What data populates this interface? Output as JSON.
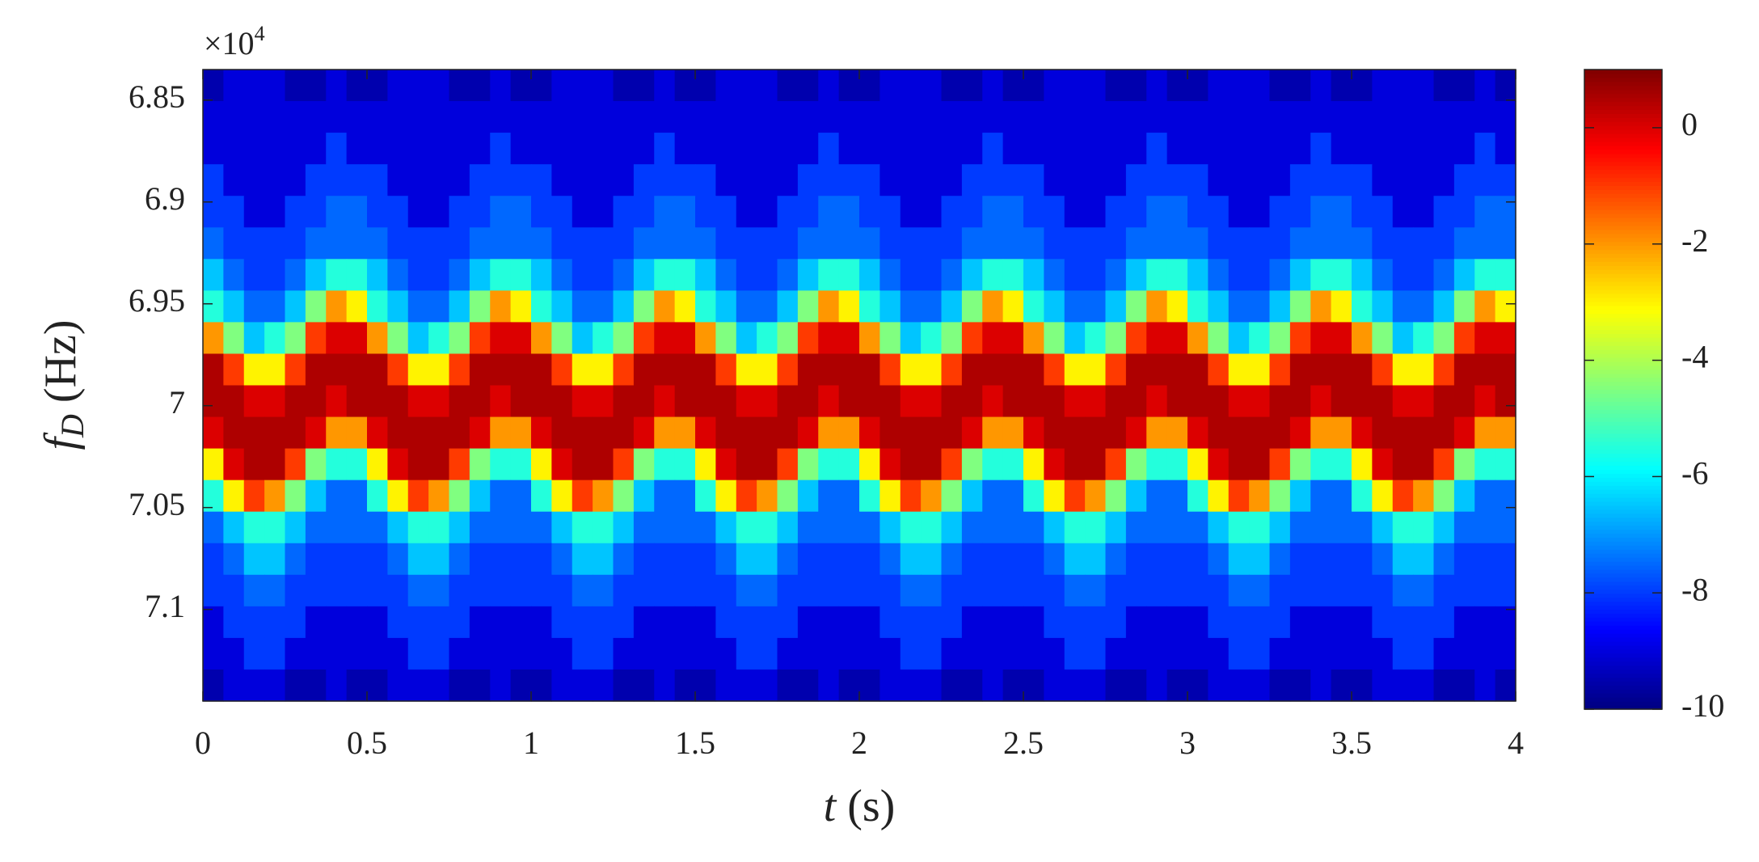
{
  "chart_data": {
    "type": "heatmap",
    "colormap": "jet",
    "xlabel": {
      "symbol": "t",
      "unit": "(s)"
    },
    "ylabel": {
      "symbol": "f",
      "subscript": "D",
      "unit": "(Hz)"
    },
    "y_multiplier": {
      "base": "×10",
      "exponent": "4"
    },
    "xlim": [
      0,
      4
    ],
    "xticks": [
      0,
      0.5,
      1,
      1.5,
      2,
      2.5,
      3,
      3.5,
      4
    ],
    "ylim": [
      6.835,
      7.145
    ],
    "y_reversed": true,
    "yticks": [
      6.85,
      6.9,
      6.95,
      7,
      7.05,
      7.1
    ],
    "clim": [
      -10,
      1
    ],
    "cticks": [
      0,
      -2,
      -4,
      -6,
      -8,
      -10
    ],
    "z": [
      [
        -9.5,
        -9,
        -9,
        -9,
        -9.5,
        -9.5,
        -9,
        -9.5,
        -9.5,
        -9,
        -9,
        -9,
        -9.5,
        -9.5,
        -9,
        -9.5,
        -9.5,
        -9,
        -9,
        -9,
        -9.5,
        -9.5,
        -9,
        -9.5,
        -9.5,
        -9,
        -9,
        -9,
        -9.5,
        -9.5,
        -9,
        -9.5,
        -9.5,
        -9,
        -9,
        -9,
        -9.5,
        -9.5,
        -9,
        -9.5,
        -9.5,
        -9,
        -9,
        -9,
        -9.5,
        -9.5,
        -9,
        -9.5,
        -9.5,
        -9,
        -9,
        -9,
        -9.5,
        -9.5,
        -9,
        -9.5,
        -9.5,
        -9,
        -9,
        -9,
        -9.5,
        -9.5,
        -9,
        -9.5
      ],
      [
        -9,
        -9,
        -9,
        -9,
        -9,
        -9,
        -9,
        -9,
        -9,
        -9,
        -9,
        -9,
        -9,
        -9,
        -9,
        -9,
        -9,
        -9,
        -9,
        -9,
        -9,
        -9,
        -9,
        -9,
        -9,
        -9,
        -9,
        -9,
        -9,
        -9,
        -9,
        -9,
        -9,
        -9,
        -9,
        -9,
        -9,
        -9,
        -9,
        -9,
        -9,
        -9,
        -9,
        -9,
        -9,
        -9,
        -9,
        -9,
        -9,
        -9,
        -9,
        -9,
        -9,
        -9,
        -9,
        -9,
        -9,
        -9,
        -9,
        -9,
        -9,
        -9,
        -9,
        -9
      ],
      [
        -9,
        -9,
        -9,
        -9,
        -9,
        -9,
        -8,
        -9,
        -9,
        -9,
        -9,
        -9,
        -9,
        -9,
        -8,
        -9,
        -9,
        -9,
        -9,
        -9,
        -9,
        -9,
        -8,
        -9,
        -9,
        -9,
        -9,
        -9,
        -9,
        -9,
        -8,
        -9,
        -9,
        -9,
        -9,
        -9,
        -9,
        -9,
        -8,
        -9,
        -9,
        -9,
        -9,
        -9,
        -9,
        -9,
        -8,
        -9,
        -9,
        -9,
        -9,
        -9,
        -9,
        -9,
        -8,
        -9,
        -9,
        -9,
        -9,
        -9,
        -9,
        -9,
        -8,
        -9
      ],
      [
        -8,
        -9,
        -9,
        -9,
        -9,
        -8,
        -8,
        -8,
        -8,
        -9,
        -9,
        -9,
        -9,
        -8,
        -8,
        -8,
        -8,
        -9,
        -9,
        -9,
        -9,
        -8,
        -8,
        -8,
        -8,
        -9,
        -9,
        -9,
        -9,
        -8,
        -8,
        -8,
        -8,
        -9,
        -9,
        -9,
        -9,
        -8,
        -8,
        -8,
        -8,
        -9,
        -9,
        -9,
        -9,
        -8,
        -8,
        -8,
        -8,
        -9,
        -9,
        -9,
        -9,
        -8,
        -8,
        -8,
        -8,
        -9,
        -9,
        -9,
        -9,
        -8,
        -8,
        -8
      ],
      [
        -8,
        -8,
        -9,
        -9,
        -8,
        -8,
        -7.5,
        -7.5,
        -8,
        -8,
        -9,
        -9,
        -8,
        -8,
        -7.5,
        -7.5,
        -8,
        -8,
        -9,
        -9,
        -8,
        -8,
        -7.5,
        -7.5,
        -8,
        -8,
        -9,
        -9,
        -8,
        -8,
        -7.5,
        -7.5,
        -8,
        -8,
        -9,
        -9,
        -8,
        -8,
        -7.5,
        -7.5,
        -8,
        -8,
        -9,
        -9,
        -8,
        -8,
        -7.5,
        -7.5,
        -8,
        -8,
        -9,
        -9,
        -8,
        -8,
        -7.5,
        -7.5,
        -8,
        -8,
        -9,
        -9,
        -8,
        -8,
        -7.5,
        -7.5
      ],
      [
        -7.5,
        -8,
        -8,
        -8,
        -8,
        -7.5,
        -7.5,
        -7.5,
        -7.5,
        -8,
        -8,
        -8,
        -8,
        -7.5,
        -7.5,
        -7.5,
        -7.5,
        -8,
        -8,
        -8,
        -8,
        -7.5,
        -7.5,
        -7.5,
        -7.5,
        -8,
        -8,
        -8,
        -8,
        -7.5,
        -7.5,
        -7.5,
        -7.5,
        -8,
        -8,
        -8,
        -8,
        -7.5,
        -7.5,
        -7.5,
        -7.5,
        -8,
        -8,
        -8,
        -8,
        -7.5,
        -7.5,
        -7.5,
        -7.5,
        -8,
        -8,
        -8,
        -8,
        -7.5,
        -7.5,
        -7.5,
        -7.5,
        -8,
        -8,
        -8,
        -8,
        -7.5,
        -7.5,
        -7.5
      ],
      [
        -6.5,
        -7.5,
        -8,
        -8,
        -7.5,
        -6.5,
        -5.5,
        -5.5,
        -6.5,
        -7.5,
        -8,
        -8,
        -7.5,
        -6.5,
        -5.5,
        -5.5,
        -6.5,
        -7.5,
        -8,
        -8,
        -7.5,
        -6.5,
        -5.5,
        -5.5,
        -6.5,
        -7.5,
        -8,
        -8,
        -7.5,
        -6.5,
        -5.5,
        -5.5,
        -6.5,
        -7.5,
        -8,
        -8,
        -7.5,
        -6.5,
        -5.5,
        -5.5,
        -6.5,
        -7.5,
        -8,
        -8,
        -7.5,
        -6.5,
        -5.5,
        -5.5,
        -6.5,
        -7.5,
        -8,
        -8,
        -7.5,
        -6.5,
        -5.5,
        -5.5,
        -6.5,
        -7.5,
        -8,
        -8,
        -7.5,
        -6.5,
        -5.5,
        -5.5
      ],
      [
        -5.5,
        -6.5,
        -7.5,
        -7.5,
        -6.5,
        -4.5,
        -2,
        -3,
        -5.5,
        -6.5,
        -7.5,
        -7.5,
        -6.5,
        -4.5,
        -2,
        -3,
        -5.5,
        -6.5,
        -7.5,
        -7.5,
        -6.5,
        -4.5,
        -2,
        -3,
        -5.5,
        -6.5,
        -7.5,
        -7.5,
        -6.5,
        -4.5,
        -2,
        -3,
        -5.5,
        -6.5,
        -7.5,
        -7.5,
        -6.5,
        -4.5,
        -2,
        -3,
        -5.5,
        -6.5,
        -7.5,
        -7.5,
        -6.5,
        -4.5,
        -2,
        -3,
        -5.5,
        -6.5,
        -7.5,
        -7.5,
        -6.5,
        -4.5,
        -2,
        -3,
        -5.5,
        -6.5,
        -7.5,
        -7.5,
        -6.5,
        -4.5,
        -2,
        -3
      ],
      [
        -2,
        -4.5,
        -6.5,
        -5.5,
        -4.5,
        -1,
        0,
        0,
        -2,
        -4.5,
        -6.5,
        -5.5,
        -4.5,
        -1,
        0,
        0,
        -2,
        -4.5,
        -6.5,
        -5.5,
        -4.5,
        -1,
        0,
        0,
        -2,
        -4.5,
        -6.5,
        -5.5,
        -4.5,
        -1,
        0,
        0,
        -2,
        -4.5,
        -6.5,
        -5.5,
        -4.5,
        -1,
        0,
        0,
        -2,
        -4.5,
        -6.5,
        -5.5,
        -4.5,
        -1,
        0,
        0,
        -2,
        -4.5,
        -6.5,
        -5.5,
        -4.5,
        -1,
        0,
        0,
        -2,
        -4.5,
        -6.5,
        -5.5,
        -4.5,
        -1,
        0,
        0
      ],
      [
        0.5,
        -1,
        -3,
        -3,
        -1,
        0.5,
        0.5,
        0.5,
        0.5,
        -1,
        -3,
        -3,
        -1,
        0.5,
        0.5,
        0.5,
        0.5,
        -1,
        -3,
        -3,
        -1,
        0.5,
        0.5,
        0.5,
        0.5,
        -1,
        -3,
        -3,
        -1,
        0.5,
        0.5,
        0.5,
        0.5,
        -1,
        -3,
        -3,
        -1,
        0.5,
        0.5,
        0.5,
        0.5,
        -1,
        -3,
        -3,
        -1,
        0.5,
        0.5,
        0.5,
        0.5,
        -1,
        -3,
        -3,
        -1,
        0.5,
        0.5,
        0.5,
        0.5,
        -1,
        -3,
        -3,
        -1,
        0.5,
        0.5,
        0.5
      ],
      [
        0.5,
        0.5,
        0,
        0,
        0.5,
        0.5,
        0,
        0.5,
        0.5,
        0.5,
        0,
        0,
        0.5,
        0.5,
        0,
        0.5,
        0.5,
        0.5,
        0,
        0,
        0.5,
        0.5,
        0,
        0.5,
        0.5,
        0.5,
        0,
        0,
        0.5,
        0.5,
        0,
        0.5,
        0.5,
        0.5,
        0,
        0,
        0.5,
        0.5,
        0,
        0.5,
        0.5,
        0.5,
        0,
        0,
        0.5,
        0.5,
        0,
        0.5,
        0.5,
        0.5,
        0,
        0,
        0.5,
        0.5,
        0,
        0.5,
        0.5,
        0.5,
        0,
        0,
        0.5,
        0.5,
        0,
        0.5
      ],
      [
        0,
        0.5,
        0.5,
        0.5,
        0.5,
        0,
        -2,
        -2,
        0,
        0.5,
        0.5,
        0.5,
        0.5,
        0,
        -2,
        -2,
        0,
        0.5,
        0.5,
        0.5,
        0.5,
        0,
        -2,
        -2,
        0,
        0.5,
        0.5,
        0.5,
        0.5,
        0,
        -2,
        -2,
        0,
        0.5,
        0.5,
        0.5,
        0.5,
        0,
        -2,
        -2,
        0,
        0.5,
        0.5,
        0.5,
        0.5,
        0,
        -2,
        -2,
        0,
        0.5,
        0.5,
        0.5,
        0.5,
        0,
        -2,
        -2,
        0,
        0.5,
        0.5,
        0.5,
        0.5,
        0,
        -2,
        -2
      ],
      [
        -3,
        0,
        0.5,
        0.5,
        -1,
        -4.5,
        -5.5,
        -5.5,
        -3,
        0,
        0.5,
        0.5,
        -1,
        -4.5,
        -5.5,
        -5.5,
        -3,
        0,
        0.5,
        0.5,
        -1,
        -4.5,
        -5.5,
        -5.5,
        -3,
        0,
        0.5,
        0.5,
        -1,
        -4.5,
        -5.5,
        -5.5,
        -3,
        0,
        0.5,
        0.5,
        -1,
        -4.5,
        -5.5,
        -5.5,
        -3,
        0,
        0.5,
        0.5,
        -1,
        -4.5,
        -5.5,
        -5.5,
        -3,
        0,
        0.5,
        0.5,
        -1,
        -4.5,
        -5.5,
        -5.5,
        -3,
        0,
        0.5,
        0.5,
        -1,
        -4.5,
        -5.5,
        -5.5
      ],
      [
        -5.5,
        -3,
        -1,
        -2,
        -4.5,
        -6.5,
        -7.5,
        -7.5,
        -5.5,
        -3,
        -1,
        -2,
        -4.5,
        -6.5,
        -7.5,
        -7.5,
        -5.5,
        -3,
        -1,
        -2,
        -4.5,
        -6.5,
        -7.5,
        -7.5,
        -5.5,
        -3,
        -1,
        -2,
        -4.5,
        -6.5,
        -7.5,
        -7.5,
        -5.5,
        -3,
        -1,
        -2,
        -4.5,
        -6.5,
        -7.5,
        -7.5,
        -5.5,
        -3,
        -1,
        -2,
        -4.5,
        -6.5,
        -7.5,
        -7.5,
        -5.5,
        -3,
        -1,
        -2,
        -4.5,
        -6.5,
        -7.5,
        -7.5,
        -5.5,
        -3,
        -1,
        -2,
        -4.5,
        -6.5,
        -7.5,
        -7.5
      ],
      [
        -7.5,
        -6.5,
        -5.5,
        -5.5,
        -6.5,
        -7.5,
        -7.5,
        -7.5,
        -7.5,
        -6.5,
        -5.5,
        -5.5,
        -6.5,
        -7.5,
        -7.5,
        -7.5,
        -7.5,
        -6.5,
        -5.5,
        -5.5,
        -6.5,
        -7.5,
        -7.5,
        -7.5,
        -7.5,
        -6.5,
        -5.5,
        -5.5,
        -6.5,
        -7.5,
        -7.5,
        -7.5,
        -7.5,
        -6.5,
        -5.5,
        -5.5,
        -6.5,
        -7.5,
        -7.5,
        -7.5,
        -7.5,
        -6.5,
        -5.5,
        -5.5,
        -6.5,
        -7.5,
        -7.5,
        -7.5,
        -7.5,
        -6.5,
        -5.5,
        -5.5,
        -6.5,
        -7.5,
        -7.5,
        -7.5,
        -7.5,
        -6.5,
        -5.5,
        -5.5,
        -6.5,
        -7.5,
        -7.5,
        -7.5
      ],
      [
        -8,
        -7.5,
        -6.5,
        -6.5,
        -7.5,
        -8,
        -8,
        -8,
        -8,
        -7.5,
        -6.5,
        -6.5,
        -7.5,
        -8,
        -8,
        -8,
        -8,
        -7.5,
        -6.5,
        -6.5,
        -7.5,
        -8,
        -8,
        -8,
        -8,
        -7.5,
        -6.5,
        -6.5,
        -7.5,
        -8,
        -8,
        -8,
        -8,
        -7.5,
        -6.5,
        -6.5,
        -7.5,
        -8,
        -8,
        -8,
        -8,
        -7.5,
        -6.5,
        -6.5,
        -7.5,
        -8,
        -8,
        -8,
        -8,
        -7.5,
        -6.5,
        -6.5,
        -7.5,
        -8,
        -8,
        -8,
        -8,
        -7.5,
        -6.5,
        -6.5,
        -7.5,
        -8,
        -8,
        -8
      ],
      [
        -8,
        -8,
        -7.5,
        -7.5,
        -8,
        -8,
        -8,
        -8,
        -8,
        -8,
        -7.5,
        -7.5,
        -8,
        -8,
        -8,
        -8,
        -8,
        -8,
        -7.5,
        -7.5,
        -8,
        -8,
        -8,
        -8,
        -8,
        -8,
        -7.5,
        -7.5,
        -8,
        -8,
        -8,
        -8,
        -8,
        -8,
        -7.5,
        -7.5,
        -8,
        -8,
        -8,
        -8,
        -8,
        -8,
        -7.5,
        -7.5,
        -8,
        -8,
        -8,
        -8,
        -8,
        -8,
        -7.5,
        -7.5,
        -8,
        -8,
        -8,
        -8,
        -8,
        -8,
        -7.5,
        -7.5,
        -8,
        -8,
        -8,
        -8
      ],
      [
        -9,
        -8,
        -8,
        -8,
        -8,
        -9,
        -9,
        -9,
        -9,
        -8,
        -8,
        -8,
        -8,
        -9,
        -9,
        -9,
        -9,
        -8,
        -8,
        -8,
        -8,
        -9,
        -9,
        -9,
        -9,
        -8,
        -8,
        -8,
        -8,
        -9,
        -9,
        -9,
        -9,
        -8,
        -8,
        -8,
        -8,
        -9,
        -9,
        -9,
        -9,
        -8,
        -8,
        -8,
        -8,
        -9,
        -9,
        -9,
        -9,
        -8,
        -8,
        -8,
        -8,
        -9,
        -9,
        -9,
        -9,
        -8,
        -8,
        -8,
        -8,
        -9,
        -9,
        -9
      ],
      [
        -9,
        -9,
        -8,
        -8,
        -9,
        -9,
        -9,
        -9,
        -9,
        -9,
        -8,
        -8,
        -9,
        -9,
        -9,
        -9,
        -9,
        -9,
        -8,
        -8,
        -9,
        -9,
        -9,
        -9,
        -9,
        -9,
        -8,
        -8,
        -9,
        -9,
        -9,
        -9,
        -9,
        -9,
        -8,
        -8,
        -9,
        -9,
        -9,
        -9,
        -9,
        -9,
        -8,
        -8,
        -9,
        -9,
        -9,
        -9,
        -9,
        -9,
        -8,
        -8,
        -9,
        -9,
        -9,
        -9,
        -9,
        -9,
        -8,
        -8,
        -9,
        -9,
        -9,
        -9
      ],
      [
        -9.5,
        -9,
        -9,
        -9,
        -9.5,
        -9.5,
        -9,
        -9.5,
        -9.5,
        -9,
        -9,
        -9,
        -9.5,
        -9.5,
        -9,
        -9.5,
        -9.5,
        -9,
        -9,
        -9,
        -9.5,
        -9.5,
        -9,
        -9.5,
        -9.5,
        -9,
        -9,
        -9,
        -9.5,
        -9.5,
        -9,
        -9.5,
        -9.5,
        -9,
        -9,
        -9,
        -9.5,
        -9.5,
        -9,
        -9.5,
        -9.5,
        -9,
        -9,
        -9,
        -9.5,
        -9.5,
        -9,
        -9.5,
        -9.5,
        -9,
        -9,
        -9,
        -9.5,
        -9.5,
        -9,
        -9.5,
        -9.5,
        -9,
        -9,
        -9,
        -9.5,
        -9.5,
        -9,
        -9.5
      ]
    ]
  }
}
